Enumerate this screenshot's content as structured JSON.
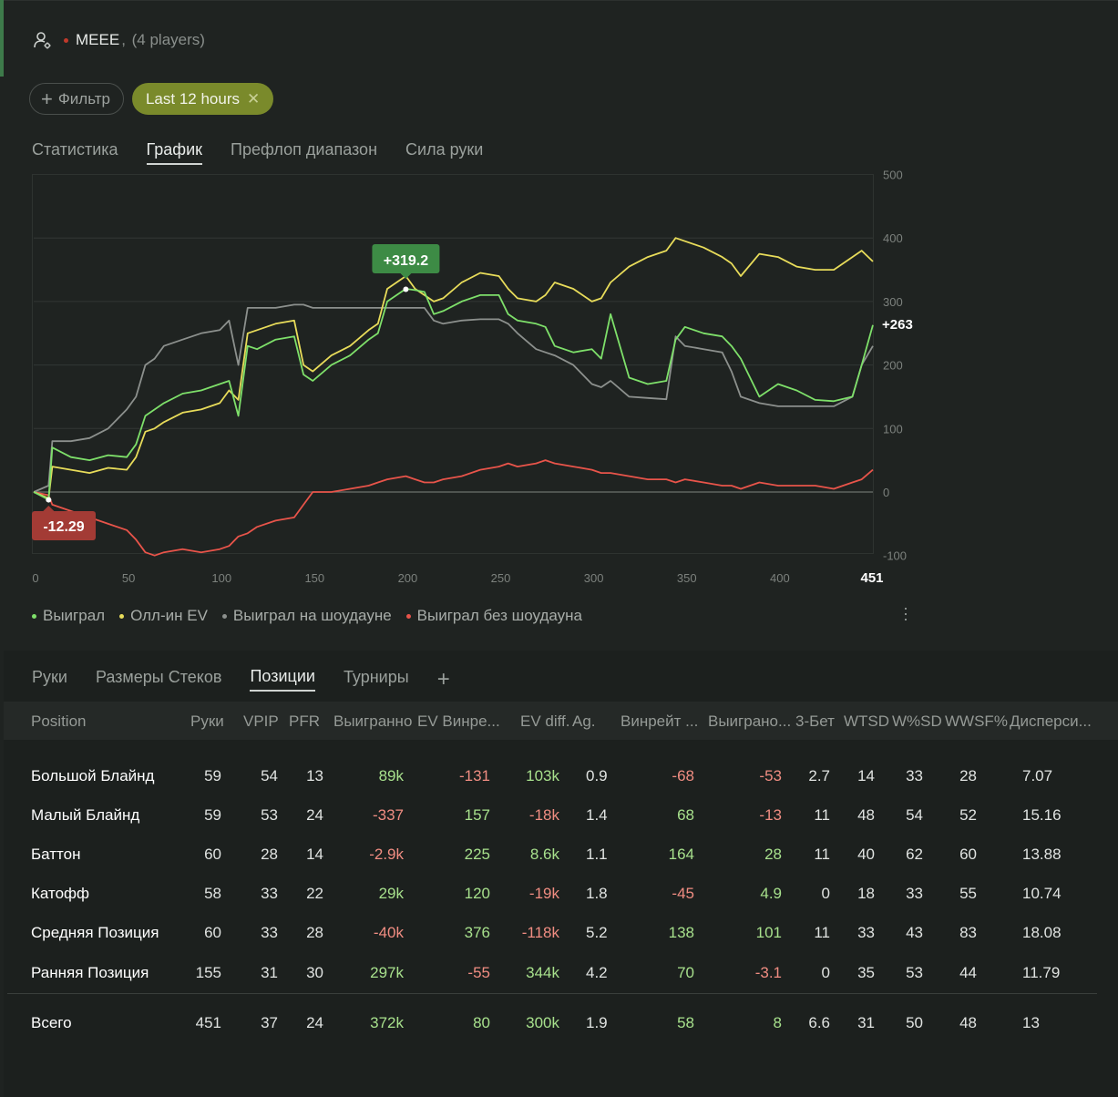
{
  "header": {
    "name": "MEEE",
    "players": "(4 players)"
  },
  "filters": {
    "add_label": "Фильтр",
    "active_label": "Last 12 hours"
  },
  "tabs": [
    "Статистика",
    "График",
    "Префлоп диапазон",
    "Сила руки"
  ],
  "chart": {
    "tooltip_high": "+319.2",
    "tooltip_low": "-12.29",
    "end_label": "+263",
    "x_end_label": "451"
  },
  "chart_data": {
    "type": "line",
    "x_ticks": [
      0,
      50,
      100,
      150,
      200,
      250,
      300,
      350,
      400
    ],
    "x_end": 451,
    "y_ticks": [
      500,
      400,
      300,
      200,
      100,
      0,
      -100
    ],
    "xlim": [
      0,
      451
    ],
    "ylim": [
      -100,
      500
    ],
    "grid": true,
    "series": [
      {
        "name": "Выиграл",
        "color": "#7ee06a",
        "x": [
          0,
          8,
          10,
          20,
          30,
          40,
          50,
          55,
          60,
          65,
          70,
          80,
          90,
          100,
          105,
          110,
          115,
          120,
          130,
          140,
          145,
          150,
          160,
          170,
          180,
          185,
          190,
          200,
          205,
          210,
          215,
          220,
          230,
          240,
          250,
          255,
          260,
          270,
          275,
          280,
          290,
          300,
          305,
          310,
          320,
          330,
          340,
          345,
          350,
          360,
          370,
          375,
          380,
          390,
          400,
          410,
          420,
          430,
          440,
          445,
          451
        ],
        "y": [
          0,
          -12,
          70,
          55,
          50,
          58,
          55,
          75,
          120,
          130,
          140,
          155,
          160,
          170,
          175,
          120,
          230,
          225,
          240,
          245,
          185,
          175,
          200,
          215,
          240,
          250,
          300,
          320,
          318,
          315,
          280,
          285,
          300,
          310,
          310,
          280,
          270,
          265,
          260,
          230,
          220,
          225,
          210,
          280,
          180,
          170,
          175,
          240,
          260,
          250,
          245,
          230,
          210,
          150,
          170,
          160,
          145,
          143,
          150,
          200,
          263
        ]
      },
      {
        "name": "Олл-ин EV",
        "color": "#e8dc5a",
        "x": [
          0,
          8,
          10,
          20,
          30,
          40,
          50,
          55,
          60,
          65,
          70,
          80,
          90,
          100,
          105,
          110,
          115,
          120,
          130,
          140,
          145,
          150,
          160,
          170,
          180,
          185,
          190,
          200,
          205,
          210,
          215,
          220,
          230,
          240,
          250,
          255,
          260,
          270,
          275,
          280,
          290,
          300,
          305,
          310,
          320,
          330,
          340,
          345,
          350,
          360,
          370,
          375,
          380,
          390,
          400,
          410,
          420,
          430,
          440,
          445,
          451
        ],
        "y": [
          0,
          -10,
          40,
          35,
          30,
          38,
          35,
          55,
          95,
          100,
          110,
          125,
          130,
          140,
          160,
          145,
          250,
          255,
          265,
          270,
          200,
          190,
          215,
          230,
          255,
          265,
          320,
          340,
          320,
          310,
          300,
          305,
          330,
          345,
          340,
          320,
          305,
          300,
          310,
          330,
          320,
          300,
          305,
          330,
          355,
          370,
          380,
          400,
          395,
          385,
          370,
          360,
          340,
          375,
          370,
          355,
          350,
          350,
          370,
          380,
          363
        ]
      },
      {
        "name": "Выиграл на шоудауне",
        "color": "#8c908d",
        "x": [
          0,
          8,
          10,
          20,
          30,
          40,
          50,
          55,
          60,
          65,
          70,
          80,
          90,
          100,
          105,
          110,
          115,
          120,
          130,
          140,
          145,
          150,
          160,
          170,
          180,
          185,
          190,
          200,
          205,
          210,
          215,
          220,
          230,
          240,
          250,
          255,
          260,
          270,
          275,
          280,
          290,
          300,
          305,
          310,
          320,
          330,
          340,
          345,
          350,
          360,
          370,
          375,
          380,
          390,
          400,
          410,
          420,
          430,
          440,
          445,
          451
        ],
        "y": [
          0,
          10,
          80,
          80,
          85,
          100,
          130,
          150,
          200,
          210,
          230,
          240,
          250,
          255,
          270,
          200,
          290,
          290,
          290,
          295,
          295,
          290,
          290,
          290,
          290,
          290,
          290,
          290,
          290,
          290,
          270,
          265,
          270,
          272,
          272,
          265,
          250,
          225,
          220,
          215,
          200,
          170,
          165,
          175,
          150,
          148,
          146,
          245,
          230,
          225,
          220,
          190,
          150,
          140,
          135,
          135,
          135,
          135,
          150,
          200,
          230
        ]
      },
      {
        "name": "Выиграл без шоудауна",
        "color": "#e8544a",
        "x": [
          0,
          8,
          10,
          20,
          30,
          40,
          50,
          55,
          60,
          65,
          70,
          80,
          90,
          100,
          105,
          110,
          115,
          120,
          130,
          140,
          145,
          150,
          160,
          170,
          180,
          185,
          190,
          200,
          205,
          210,
          215,
          220,
          230,
          240,
          250,
          255,
          260,
          270,
          275,
          280,
          290,
          300,
          305,
          310,
          320,
          330,
          340,
          345,
          350,
          360,
          370,
          375,
          380,
          390,
          400,
          410,
          420,
          430,
          440,
          445,
          451
        ],
        "y": [
          0,
          -5,
          -20,
          -30,
          -40,
          -50,
          -60,
          -75,
          -95,
          -100,
          -95,
          -90,
          -95,
          -90,
          -85,
          -70,
          -65,
          -55,
          -45,
          -40,
          -20,
          0,
          0,
          5,
          10,
          15,
          20,
          25,
          20,
          15,
          15,
          20,
          25,
          35,
          40,
          45,
          40,
          45,
          50,
          45,
          40,
          35,
          30,
          30,
          25,
          20,
          20,
          15,
          20,
          15,
          10,
          10,
          5,
          15,
          10,
          10,
          10,
          5,
          15,
          20,
          35
        ]
      }
    ]
  },
  "legend": [
    {
      "label": "Выиграл",
      "color": "#7ee06a"
    },
    {
      "label": "Олл-ин EV",
      "color": "#e8dc5a"
    },
    {
      "label": "Выиграл на шоудауне",
      "color": "#8c908d"
    },
    {
      "label": "Выиграл без шоудауна",
      "color": "#e8544a"
    }
  ],
  "lower_tabs": [
    "Руки",
    "Размеры Стеков",
    "Позиции",
    "Турниры"
  ],
  "table": {
    "headers": [
      "Position",
      "Руки",
      "VPIP",
      "PFR",
      "Выигранно",
      "EV Винре...",
      "EV diff.",
      "Ag.",
      "Винрейт ...",
      "Выиграно...",
      "3-Бет",
      "WTSD",
      "W%SD",
      "WWSF%",
      "Дисперси..."
    ],
    "rows": [
      {
        "position": "Большой Блайнд",
        "hands": "59",
        "vpip": "54",
        "pfr": "13",
        "won": "89k",
        "ev_winrate": "-131",
        "ev_diff": "103k",
        "ag": "0.9",
        "winrate": "-68",
        "won2": "-53",
        "threebet": "2.7",
        "wtsd": "14",
        "wsd": "33",
        "wwsf": "28",
        "disp": "7.07"
      },
      {
        "position": "Малый Блайнд",
        "hands": "59",
        "vpip": "53",
        "pfr": "24",
        "won": "-337",
        "ev_winrate": "157",
        "ev_diff": "-18k",
        "ag": "1.4",
        "winrate": "68",
        "won2": "-13",
        "threebet": "11",
        "wtsd": "48",
        "wsd": "54",
        "wwsf": "52",
        "disp": "15.16"
      },
      {
        "position": "Баттон",
        "hands": "60",
        "vpip": "28",
        "pfr": "14",
        "won": "-2.9k",
        "ev_winrate": "225",
        "ev_diff": "8.6k",
        "ag": "1.1",
        "winrate": "164",
        "won2": "28",
        "threebet": "11",
        "wtsd": "40",
        "wsd": "62",
        "wwsf": "60",
        "disp": "13.88"
      },
      {
        "position": "Катофф",
        "hands": "58",
        "vpip": "33",
        "pfr": "22",
        "won": "29k",
        "ev_winrate": "120",
        "ev_diff": "-19k",
        "ag": "1.8",
        "winrate": "-45",
        "won2": "4.9",
        "threebet": "0",
        "wtsd": "18",
        "wsd": "33",
        "wwsf": "55",
        "disp": "10.74"
      },
      {
        "position": "Средняя Позиция",
        "hands": "60",
        "vpip": "33",
        "pfr": "28",
        "won": "-40k",
        "ev_winrate": "376",
        "ev_diff": "-118k",
        "ag": "5.2",
        "winrate": "138",
        "won2": "101",
        "threebet": "11",
        "wtsd": "33",
        "wsd": "43",
        "wwsf": "83",
        "disp": "18.08"
      },
      {
        "position": "Ранняя Позиция",
        "hands": "155",
        "vpip": "31",
        "pfr": "30",
        "won": "297k",
        "ev_winrate": "-55",
        "ev_diff": "344k",
        "ag": "4.2",
        "winrate": "70",
        "won2": "-3.1",
        "threebet": "0",
        "wtsd": "35",
        "wsd": "53",
        "wwsf": "44",
        "disp": "11.79"
      }
    ],
    "total": {
      "position": "Всего",
      "hands": "451",
      "vpip": "37",
      "pfr": "24",
      "won": "372k",
      "ev_winrate": "80",
      "ev_diff": "300k",
      "ag": "1.9",
      "winrate": "58",
      "won2": "8",
      "threebet": "6.6",
      "wtsd": "31",
      "wsd": "50",
      "wwsf": "48",
      "disp": "13"
    }
  }
}
